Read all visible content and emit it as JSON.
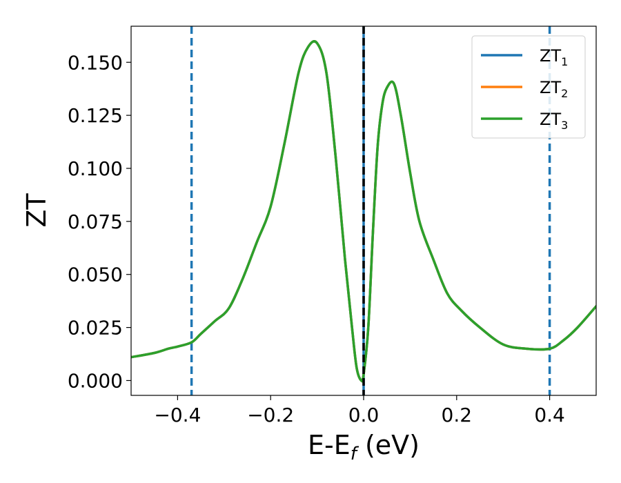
{
  "chart_data": {
    "type": "line",
    "xlabel_main": "E-E",
    "xlabel_sub": "f",
    "xlabel_tail": " (eV)",
    "ylabel": "ZT",
    "xlim": [
      -0.5,
      0.5
    ],
    "ylim": [
      -0.007,
      0.167
    ],
    "xticks": [
      -0.4,
      -0.2,
      0.0,
      0.2,
      0.4
    ],
    "xtick_labels": [
      "−0.4",
      "−0.2",
      "0.0",
      "0.2",
      "0.4"
    ],
    "yticks": [
      0.0,
      0.025,
      0.05,
      0.075,
      0.1,
      0.125,
      0.15
    ],
    "ytick_labels": [
      "0.000",
      "0.025",
      "0.050",
      "0.075",
      "0.100",
      "0.125",
      "0.150"
    ],
    "legend_position": "top-right",
    "series": [
      {
        "name_main": "ZT",
        "name_sub": "1",
        "color": "#1f77b4",
        "x": [
          -0.5,
          -0.45,
          -0.42,
          -0.4,
          -0.37,
          -0.35,
          -0.32,
          -0.29,
          -0.26,
          -0.23,
          -0.2,
          -0.17,
          -0.14,
          -0.12,
          -0.1,
          -0.08,
          -0.06,
          -0.04,
          -0.025,
          -0.015,
          -0.005,
          0.0,
          0.01,
          0.02,
          0.03,
          0.04,
          0.05,
          0.065,
          0.08,
          0.1,
          0.12,
          0.15,
          0.18,
          0.21,
          0.25,
          0.3,
          0.35,
          0.4,
          0.43,
          0.46,
          0.5
        ],
        "y": [
          0.011,
          0.013,
          0.015,
          0.016,
          0.018,
          0.022,
          0.028,
          0.034,
          0.048,
          0.065,
          0.082,
          0.112,
          0.145,
          0.157,
          0.159,
          0.145,
          0.105,
          0.057,
          0.025,
          0.006,
          0.0,
          0.003,
          0.025,
          0.07,
          0.11,
          0.13,
          0.138,
          0.14,
          0.125,
          0.098,
          0.075,
          0.057,
          0.041,
          0.033,
          0.025,
          0.017,
          0.015,
          0.015,
          0.019,
          0.025,
          0.035
        ]
      },
      {
        "name_main": "ZT",
        "name_sub": "2",
        "color": "#ff7f0e",
        "x": [
          -0.5,
          -0.45,
          -0.42,
          -0.4,
          -0.37,
          -0.35,
          -0.32,
          -0.29,
          -0.26,
          -0.23,
          -0.2,
          -0.17,
          -0.14,
          -0.12,
          -0.1,
          -0.08,
          -0.06,
          -0.04,
          -0.025,
          -0.015,
          -0.005,
          0.0,
          0.01,
          0.02,
          0.03,
          0.04,
          0.05,
          0.065,
          0.08,
          0.1,
          0.12,
          0.15,
          0.18,
          0.21,
          0.25,
          0.3,
          0.35,
          0.4,
          0.43,
          0.46,
          0.5
        ],
        "y": [
          0.011,
          0.013,
          0.015,
          0.016,
          0.018,
          0.022,
          0.028,
          0.034,
          0.048,
          0.065,
          0.082,
          0.112,
          0.145,
          0.157,
          0.159,
          0.145,
          0.105,
          0.057,
          0.025,
          0.006,
          0.0,
          0.003,
          0.025,
          0.07,
          0.11,
          0.13,
          0.138,
          0.14,
          0.125,
          0.098,
          0.075,
          0.057,
          0.041,
          0.033,
          0.025,
          0.017,
          0.015,
          0.015,
          0.019,
          0.025,
          0.035
        ]
      },
      {
        "name_main": "ZT",
        "name_sub": "3",
        "color": "#2ca02c",
        "x": [
          -0.5,
          -0.45,
          -0.42,
          -0.4,
          -0.37,
          -0.35,
          -0.32,
          -0.29,
          -0.26,
          -0.23,
          -0.2,
          -0.17,
          -0.14,
          -0.12,
          -0.1,
          -0.08,
          -0.06,
          -0.04,
          -0.025,
          -0.015,
          -0.005,
          0.0,
          0.01,
          0.02,
          0.03,
          0.04,
          0.05,
          0.065,
          0.08,
          0.1,
          0.12,
          0.15,
          0.18,
          0.21,
          0.25,
          0.3,
          0.35,
          0.4,
          0.43,
          0.46,
          0.5
        ],
        "y": [
          0.011,
          0.013,
          0.015,
          0.016,
          0.018,
          0.022,
          0.028,
          0.034,
          0.048,
          0.065,
          0.082,
          0.112,
          0.145,
          0.157,
          0.159,
          0.145,
          0.105,
          0.057,
          0.025,
          0.006,
          0.0,
          0.003,
          0.025,
          0.07,
          0.11,
          0.13,
          0.138,
          0.14,
          0.125,
          0.098,
          0.075,
          0.057,
          0.041,
          0.033,
          0.025,
          0.017,
          0.015,
          0.015,
          0.019,
          0.025,
          0.035
        ]
      }
    ],
    "reference_lines": [
      {
        "x": -0.37,
        "color": "#1f77b4",
        "style": "dashed"
      },
      {
        "x": 0.0,
        "color": "#000000",
        "style": "dashed"
      },
      {
        "x": 0.4,
        "color": "#1f77b4",
        "style": "dashed"
      }
    ]
  }
}
